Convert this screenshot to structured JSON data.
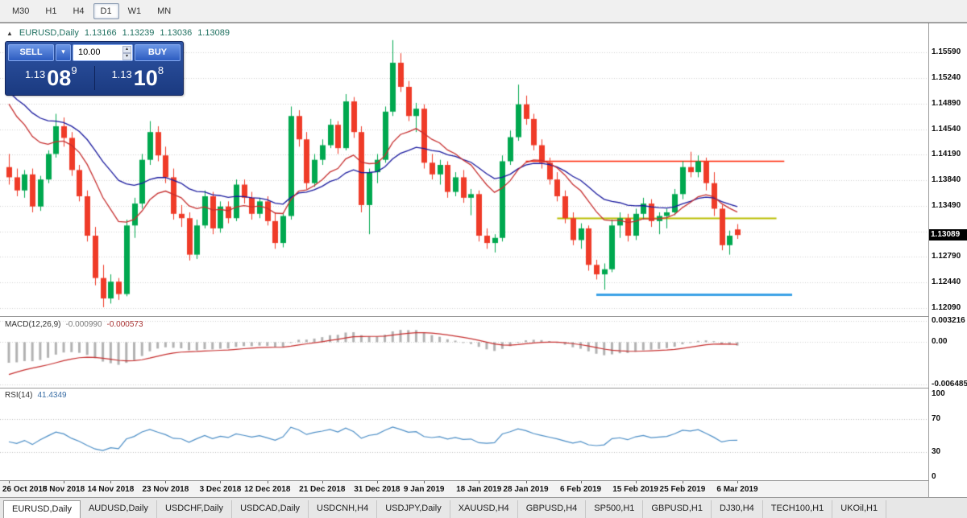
{
  "toolbar": {
    "timeframes": [
      {
        "label": "M30",
        "active": false
      },
      {
        "label": "H1",
        "active": false
      },
      {
        "label": "H4",
        "active": false
      },
      {
        "label": "D1",
        "active": true
      },
      {
        "label": "W1",
        "active": false
      },
      {
        "label": "MN",
        "active": false
      }
    ]
  },
  "chart": {
    "title": {
      "symbol": "EURUSD,Daily",
      "open": "1.13166",
      "high": "1.13239",
      "low": "1.13036",
      "close": "1.13089"
    },
    "trade_panel": {
      "sell_label": "SELL",
      "buy_label": "BUY",
      "volume": "10.00",
      "sell_price": {
        "base": "1.13",
        "big": "08",
        "sup": "9"
      },
      "buy_price": {
        "base": "1.13",
        "big": "10",
        "sup": "8"
      }
    },
    "price_axis_labels": [
      {
        "text": "1.15590",
        "price": 1.1559
      },
      {
        "text": "1.15240",
        "price": 1.1524
      },
      {
        "text": "1.14890",
        "price": 1.1489
      },
      {
        "text": "1.14540",
        "price": 1.1454
      },
      {
        "text": "1.14190",
        "price": 1.1419
      },
      {
        "text": "1.13840",
        "price": 1.1384
      },
      {
        "text": "1.13490",
        "price": 1.1349
      },
      {
        "text": "1.12790",
        "price": 1.1279
      },
      {
        "text": "1.12440",
        "price": 1.1244
      },
      {
        "text": "1.12090",
        "price": 1.1209
      }
    ],
    "current_price_badge": {
      "text": "1.13089",
      "price": 1.13089
    }
  },
  "chart_data": {
    "type": "candlestick",
    "symbol": "EURUSD",
    "timeframe": "Daily",
    "price_range": [
      1.12,
      1.1588
    ],
    "gridline_prices": [
      1.1559,
      1.1524,
      1.1489,
      1.1454,
      1.1419,
      1.1384,
      1.1349,
      1.1314,
      1.1279,
      1.1244,
      1.1209
    ],
    "dates": [
      "26 Oct 2018",
      "5 Nov 2018",
      "14 Nov 2018",
      "23 Nov 2018",
      "3 Dec 2018",
      "12 Dec 2018",
      "21 Dec 2018",
      "31 Dec 2018",
      "9 Jan 2019",
      "18 Jan 2019",
      "28 Jan 2019",
      "6 Feb 2019",
      "15 Feb 2019",
      "25 Feb 2019",
      "6 Mar 2019"
    ],
    "candles": [
      [
        1.1402,
        1.142,
        1.1378,
        1.1388
      ],
      [
        1.1388,
        1.14,
        1.1362,
        1.137
      ],
      [
        1.137,
        1.1398,
        1.136,
        1.1392
      ],
      [
        1.1392,
        1.14,
        1.134,
        1.1348
      ],
      [
        1.1348,
        1.139,
        1.1342,
        1.1385
      ],
      [
        1.1385,
        1.1425,
        1.138,
        1.142
      ],
      [
        1.142,
        1.1475,
        1.1415,
        1.1458
      ],
      [
        1.1458,
        1.147,
        1.143,
        1.1442
      ],
      [
        1.1442,
        1.145,
        1.139,
        1.1398
      ],
      [
        1.1398,
        1.1405,
        1.1355,
        1.1362
      ],
      [
        1.1362,
        1.137,
        1.13,
        1.1308
      ],
      [
        1.1308,
        1.132,
        1.124,
        1.125
      ],
      [
        1.125,
        1.1268,
        1.121,
        1.1222
      ],
      [
        1.1222,
        1.1255,
        1.1215,
        1.1245
      ],
      [
        1.1245,
        1.125,
        1.122,
        1.1228
      ],
      [
        1.1228,
        1.133,
        1.1225,
        1.1322
      ],
      [
        1.1322,
        1.136,
        1.1305,
        1.1352
      ],
      [
        1.1352,
        1.142,
        1.1345,
        1.1412
      ],
      [
        1.1412,
        1.1465,
        1.1405,
        1.145
      ],
      [
        1.145,
        1.1458,
        1.141,
        1.1418
      ],
      [
        1.1418,
        1.143,
        1.138,
        1.1388
      ],
      [
        1.1388,
        1.14,
        1.133,
        1.1338
      ],
      [
        1.1338,
        1.135,
        1.132,
        1.1332
      ],
      [
        1.1332,
        1.134,
        1.1274,
        1.1282
      ],
      [
        1.1282,
        1.133,
        1.1276,
        1.1322
      ],
      [
        1.1322,
        1.137,
        1.1318,
        1.1362
      ],
      [
        1.1362,
        1.1368,
        1.131,
        1.1318
      ],
      [
        1.1318,
        1.1355,
        1.1312,
        1.1348
      ],
      [
        1.1348,
        1.1355,
        1.1325,
        1.1332
      ],
      [
        1.1332,
        1.1385,
        1.1328,
        1.1378
      ],
      [
        1.1378,
        1.1385,
        1.1352,
        1.136
      ],
      [
        1.136,
        1.1368,
        1.133,
        1.1338
      ],
      [
        1.1338,
        1.136,
        1.1332,
        1.1355
      ],
      [
        1.1355,
        1.1362,
        1.1322,
        1.1328
      ],
      [
        1.1328,
        1.134,
        1.129,
        1.1298
      ],
      [
        1.1298,
        1.134,
        1.1292,
        1.1335
      ],
      [
        1.1335,
        1.1485,
        1.133,
        1.1472
      ],
      [
        1.1472,
        1.148,
        1.143,
        1.144
      ],
      [
        1.144,
        1.145,
        1.1372,
        1.138
      ],
      [
        1.138,
        1.142,
        1.1375,
        1.1412
      ],
      [
        1.1412,
        1.144,
        1.1405,
        1.1432
      ],
      [
        1.1432,
        1.1468,
        1.1428,
        1.146
      ],
      [
        1.146,
        1.1465,
        1.142,
        1.1428
      ],
      [
        1.1428,
        1.1502,
        1.1425,
        1.1492
      ],
      [
        1.1492,
        1.1498,
        1.1442,
        1.145
      ],
      [
        1.145,
        1.1458,
        1.134,
        1.135
      ],
      [
        1.135,
        1.14,
        1.131,
        1.1395
      ],
      [
        1.1395,
        1.142,
        1.138,
        1.1412
      ],
      [
        1.1412,
        1.1485,
        1.1408,
        1.1478
      ],
      [
        1.1478,
        1.1576,
        1.1472,
        1.1545
      ],
      [
        1.1545,
        1.1558,
        1.1505,
        1.1512
      ],
      [
        1.1512,
        1.152,
        1.1465,
        1.1472
      ],
      [
        1.1472,
        1.149,
        1.145,
        1.1482
      ],
      [
        1.1482,
        1.1488,
        1.14,
        1.1408
      ],
      [
        1.1408,
        1.142,
        1.1385,
        1.1392
      ],
      [
        1.1392,
        1.1412,
        1.1378,
        1.1405
      ],
      [
        1.1405,
        1.141,
        1.136,
        1.1368
      ],
      [
        1.1368,
        1.1395,
        1.1362,
        1.1388
      ],
      [
        1.1388,
        1.1398,
        1.1353,
        1.136
      ],
      [
        1.136,
        1.1372,
        1.1336,
        1.1365
      ],
      [
        1.1365,
        1.137,
        1.13,
        1.1308
      ],
      [
        1.1308,
        1.1318,
        1.129,
        1.1298
      ],
      [
        1.1298,
        1.131,
        1.1285,
        1.1305
      ],
      [
        1.1305,
        1.1418,
        1.13,
        1.141
      ],
      [
        1.141,
        1.1452,
        1.1405,
        1.1443
      ],
      [
        1.1443,
        1.1515,
        1.1438,
        1.1488
      ],
      [
        1.1488,
        1.15,
        1.146,
        1.1468
      ],
      [
        1.1468,
        1.1475,
        1.1425,
        1.1432
      ],
      [
        1.1432,
        1.144,
        1.14,
        1.1408
      ],
      [
        1.1408,
        1.1415,
        1.1378,
        1.1385
      ],
      [
        1.1385,
        1.1395,
        1.1355,
        1.1362
      ],
      [
        1.1362,
        1.137,
        1.1325,
        1.1332
      ],
      [
        1.1332,
        1.134,
        1.1295,
        1.1302
      ],
      [
        1.1302,
        1.1325,
        1.129,
        1.1318
      ],
      [
        1.1318,
        1.1322,
        1.126,
        1.1268
      ],
      [
        1.1268,
        1.1275,
        1.1248,
        1.1255
      ],
      [
        1.1255,
        1.127,
        1.1234,
        1.1262
      ],
      [
        1.1262,
        1.133,
        1.1258,
        1.1322
      ],
      [
        1.1322,
        1.134,
        1.1305,
        1.1332
      ],
      [
        1.1332,
        1.1338,
        1.13,
        1.1308
      ],
      [
        1.1308,
        1.1345,
        1.1302,
        1.1338
      ],
      [
        1.1338,
        1.136,
        1.133,
        1.1352
      ],
      [
        1.1352,
        1.1358,
        1.132,
        1.1328
      ],
      [
        1.1328,
        1.134,
        1.131,
        1.1335
      ],
      [
        1.1335,
        1.1345,
        1.1318,
        1.134
      ],
      [
        1.134,
        1.1372,
        1.1336,
        1.1365
      ],
      [
        1.1365,
        1.141,
        1.1358,
        1.1402
      ],
      [
        1.1402,
        1.1423,
        1.1388,
        1.1395
      ],
      [
        1.1395,
        1.1418,
        1.1388,
        1.141
      ],
      [
        1.141,
        1.1415,
        1.137,
        1.138
      ],
      [
        1.138,
        1.1395,
        1.1335,
        1.1345
      ],
      [
        1.1345,
        1.135,
        1.1288,
        1.1295
      ],
      [
        1.1295,
        1.1315,
        1.1282,
        1.1308
      ],
      [
        1.13166,
        1.13239,
        1.13036,
        1.13089
      ]
    ],
    "hlines": [
      {
        "price": 1.141,
        "i1": 66,
        "i2": 99,
        "color": "#ff2000",
        "width": 1.5
      },
      {
        "price": 1.1332,
        "i1": 70,
        "i2": 98,
        "color": "#b9bd00",
        "width": 2
      },
      {
        "price": 1.1228,
        "i1": 75,
        "i2": 100,
        "color": "#3aa1e6",
        "width": 3
      }
    ],
    "indicators": {
      "macd": {
        "label": "MACD(12,26,9)",
        "value1": "-0.000990",
        "value2": "-0.000573",
        "axis": [
          {
            "text": "0.003216",
            "value": 0.003216
          },
          {
            "text": "0.00",
            "value": 0
          },
          {
            "text": "-0.006485",
            "value": -0.006485
          }
        ],
        "range": [
          -0.0066,
          0.0035
        ]
      },
      "rsi": {
        "label": "RSI(14)",
        "value": "41.4349",
        "axis": [
          {
            "text": "100",
            "value": 100
          },
          {
            "text": "70",
            "value": 70
          },
          {
            "text": "30",
            "value": 30
          },
          {
            "text": "0",
            "value": 0
          }
        ],
        "levels": [
          70,
          30
        ]
      }
    },
    "colors": {
      "bull": "#00a84f",
      "bear": "#ef3b28",
      "ma_fast": "#c62f2f",
      "ma_slow": "#1a1a9e",
      "macd_hist": "#b2b2b2",
      "macd_signal": "#c62f2f",
      "rsi_line": "#4c8ec6",
      "grid": "#d0d0d0",
      "badge_bg": "#000000",
      "badge_text": "#ffffff"
    }
  },
  "tabs": [
    {
      "label": "EURUSD,Daily",
      "active": true
    },
    {
      "label": "AUDUSD,Daily",
      "active": false
    },
    {
      "label": "USDCHF,Daily",
      "active": false
    },
    {
      "label": "USDCAD,Daily",
      "active": false
    },
    {
      "label": "USDCNH,H4",
      "active": false
    },
    {
      "label": "USDJPY,Daily",
      "active": false
    },
    {
      "label": "XAUUSD,H4",
      "active": false
    },
    {
      "label": "GBPUSD,H4",
      "active": false
    },
    {
      "label": "SP500,H1",
      "active": false
    },
    {
      "label": "GBPUSD,H1",
      "active": false
    },
    {
      "label": "DJ30,H4",
      "active": false
    },
    {
      "label": "TECH100,H1",
      "active": false
    },
    {
      "label": "UKOil,H1",
      "active": false
    }
  ]
}
